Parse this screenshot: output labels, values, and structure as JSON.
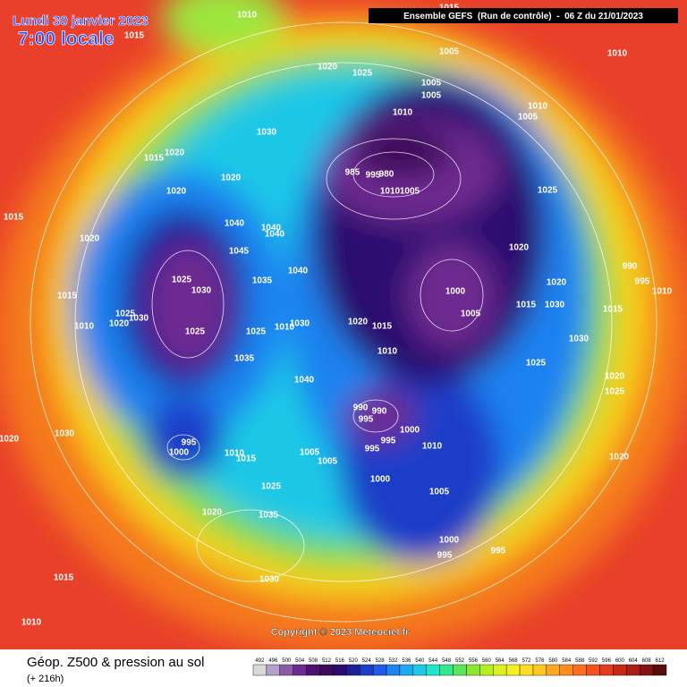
{
  "header": {
    "date": "Lundi 30 janvier 2023",
    "time": "7:00 locale",
    "run": "Ensemble GEFS  (Run de contrôle)  -  06 Z du 21/01/2023"
  },
  "map": {
    "pressure_labels": [
      "1010",
      "1015",
      "1020",
      "1025",
      "1005",
      "1015",
      "1010",
      "1005",
      "1005",
      "1010",
      "1010",
      "1005",
      "1030",
      "1020",
      "1015",
      "985",
      "995",
      "980",
      "1010",
      "1005",
      "1020",
      "1020",
      "1025",
      "1040",
      "1040",
      "1040",
      "1015",
      "1020",
      "1045",
      "1020",
      "990",
      "995",
      "1010",
      "1040",
      "1025",
      "1030",
      "1035",
      "1000",
      "1020",
      "1015",
      "1025",
      "1030",
      "1020",
      "1010",
      "1005",
      "1015",
      "1030",
      "1015",
      "1020",
      "1015",
      "1030",
      "1010",
      "1025",
      "1025",
      "1010",
      "1030",
      "1035",
      "1025",
      "1040",
      "1020",
      "1025",
      "990",
      "990",
      "995",
      "1000",
      "995",
      "995",
      "1010",
      "1030",
      "1020",
      "995",
      "1000",
      "1010",
      "1015",
      "1005",
      "1005",
      "1020",
      "1000",
      "1025",
      "1005",
      "1020",
      "1035",
      "1000",
      "995",
      "995",
      "1015",
      "1030",
      "1010"
    ],
    "copyright": "Copyright © 2023 Meteociel.fr"
  },
  "footer": {
    "title": "Géop. Z500 & pression au sol",
    "subtitle": "(+ 216h)"
  },
  "legend": {
    "labels": [
      492,
      496,
      500,
      504,
      508,
      512,
      516,
      520,
      524,
      528,
      532,
      536,
      540,
      544,
      548,
      552,
      556,
      560,
      564,
      568,
      572,
      576,
      580,
      584,
      588,
      592,
      596,
      600,
      604,
      608,
      612
    ],
    "colors": [
      "#d9d9d9",
      "#b4a0c8",
      "#8c5aa8",
      "#6e2a90",
      "#501070",
      "#3c0a5c",
      "#2a0a6e",
      "#1e1e96",
      "#1e3cc8",
      "#1e5ae6",
      "#1e82f0",
      "#1eaaf0",
      "#1ec8e6",
      "#1ee6c8",
      "#32e68c",
      "#5ae65a",
      "#8ce632",
      "#b4f01e",
      "#dcf01e",
      "#f5f01e",
      "#ffdc1e",
      "#ffc81e",
      "#ffaa1e",
      "#ff8c1e",
      "#ff6e1e",
      "#f5501e",
      "#e63c1e",
      "#c82814",
      "#aa1e14",
      "#821414",
      "#5a0a0a"
    ]
  }
}
